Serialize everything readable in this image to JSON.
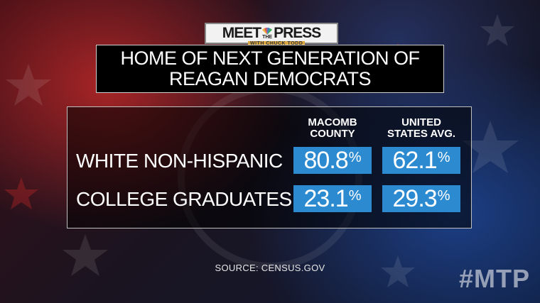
{
  "logo": {
    "meet": "MEET",
    "the": "THE",
    "press": "PRESS",
    "subtitle": "WITH CHUCK TODD"
  },
  "title": {
    "line1": "HOME OF NEXT GENERATION OF",
    "line2": "REAGAN DEMOCRATS"
  },
  "table": {
    "columns": [
      {
        "line1": "MACOMB",
        "line2": "COUNTY"
      },
      {
        "line1": "UNITED",
        "line2": "STATES AVG."
      }
    ],
    "rows": [
      {
        "label": "WHITE NON-HISPANIC",
        "values": [
          "80.8",
          "62.1"
        ]
      },
      {
        "label": "COLLEGE GRADUATES",
        "values": [
          "23.1",
          "29.3"
        ]
      }
    ],
    "unit": "%"
  },
  "source": "SOURCE: CENSUS.GOV",
  "hashtag": "#MTP",
  "colors": {
    "cell_blue": "#2c8ad1",
    "logo_accent": "#d9a640"
  }
}
